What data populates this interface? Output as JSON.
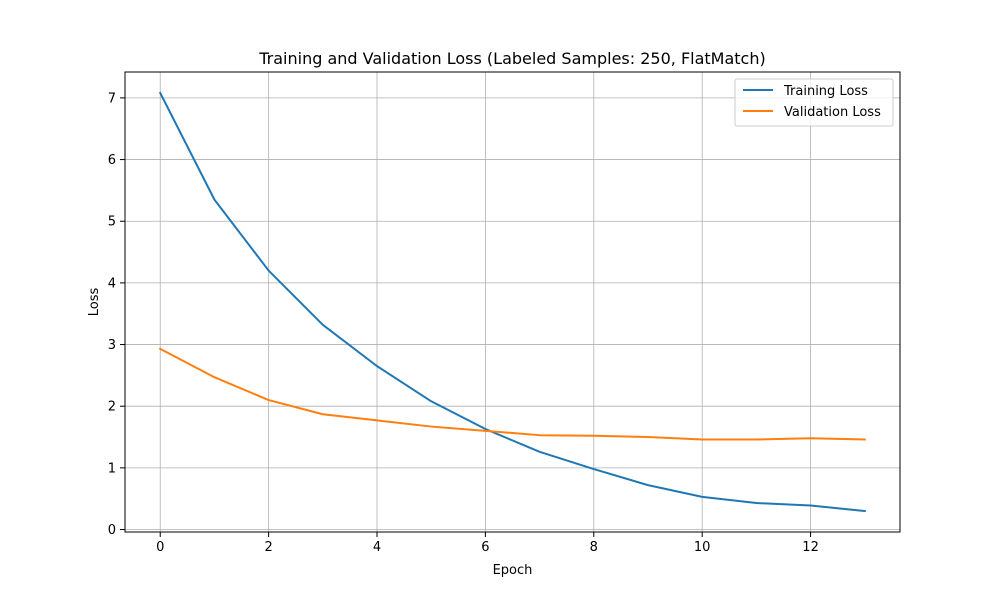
{
  "chart_data": {
    "type": "line",
    "title": "Training and Validation Loss (Labeled Samples: 250, FlatMatch)",
    "xlabel": "Epoch",
    "ylabel": "Loss",
    "xlim": [
      -0.65,
      13.65
    ],
    "ylim": [
      -0.04,
      7.42
    ],
    "xticks": [
      0,
      2,
      4,
      6,
      8,
      10,
      12
    ],
    "yticks": [
      0,
      1,
      2,
      3,
      4,
      5,
      6,
      7
    ],
    "grid": true,
    "legend_position": "upper right",
    "x": [
      0,
      1,
      2,
      3,
      4,
      5,
      6,
      7,
      8,
      9,
      10,
      11,
      12,
      13
    ],
    "series": [
      {
        "name": "Training Loss",
        "color": "#1f77b4",
        "values": [
          7.08,
          5.35,
          4.2,
          3.32,
          2.65,
          2.08,
          1.63,
          1.26,
          0.98,
          0.72,
          0.53,
          0.43,
          0.39,
          0.3
        ]
      },
      {
        "name": "Validation Loss",
        "color": "#ff7f0e",
        "values": [
          2.93,
          2.47,
          2.1,
          1.87,
          1.77,
          1.67,
          1.6,
          1.53,
          1.52,
          1.5,
          1.46,
          1.46,
          1.48,
          1.46
        ]
      }
    ]
  }
}
